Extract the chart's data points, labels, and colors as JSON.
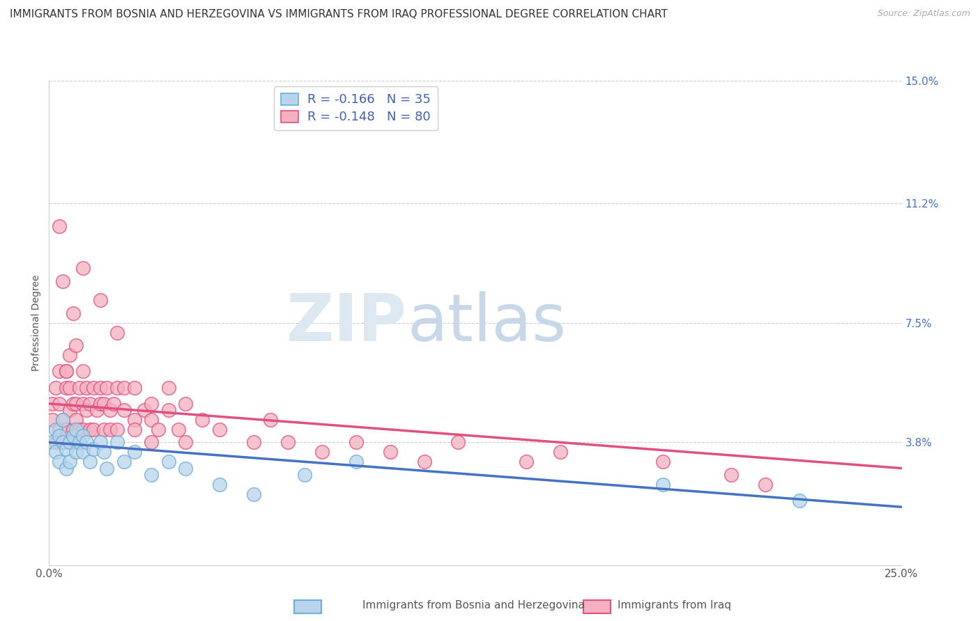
{
  "title": "IMMIGRANTS FROM BOSNIA AND HERZEGOVINA VS IMMIGRANTS FROM IRAQ PROFESSIONAL DEGREE CORRELATION CHART",
  "source": "Source: ZipAtlas.com",
  "ylabel": "Professional Degree",
  "xlabel": "",
  "xlim": [
    0.0,
    0.25
  ],
  "ylim": [
    0.0,
    0.15
  ],
  "yticks": [
    0.038,
    0.075,
    0.112,
    0.15
  ],
  "ytick_labels": [
    "3.8%",
    "7.5%",
    "11.2%",
    "15.0%"
  ],
  "xtick_labels": [
    "0.0%",
    "25.0%"
  ],
  "xticks": [
    0.0,
    0.25
  ],
  "legend_entries": [
    {
      "label": "R = -0.166   N = 35",
      "color": "#a8c4e0"
    },
    {
      "label": "R = -0.148   N = 80",
      "color": "#f4a0b0"
    }
  ],
  "series_bosnia": {
    "color": "#6baed6",
    "marker_color": "#b8d4ea",
    "trend_color": "#4472c4",
    "trend_start": 0.038,
    "trend_end": 0.018,
    "x": [
      0.001,
      0.002,
      0.002,
      0.003,
      0.003,
      0.004,
      0.004,
      0.005,
      0.005,
      0.006,
      0.006,
      0.007,
      0.008,
      0.008,
      0.009,
      0.01,
      0.01,
      0.011,
      0.012,
      0.013,
      0.015,
      0.016,
      0.017,
      0.02,
      0.022,
      0.025,
      0.03,
      0.035,
      0.04,
      0.05,
      0.06,
      0.075,
      0.09,
      0.18,
      0.22
    ],
    "y": [
      0.038,
      0.042,
      0.035,
      0.04,
      0.032,
      0.038,
      0.045,
      0.036,
      0.03,
      0.038,
      0.032,
      0.04,
      0.035,
      0.042,
      0.038,
      0.04,
      0.035,
      0.038,
      0.032,
      0.036,
      0.038,
      0.035,
      0.03,
      0.038,
      0.032,
      0.035,
      0.028,
      0.032,
      0.03,
      0.025,
      0.022,
      0.028,
      0.032,
      0.025,
      0.02
    ]
  },
  "series_iraq": {
    "color": "#e05080",
    "marker_color": "#f4b0c0",
    "trend_color": "#e05080",
    "trend_start": 0.05,
    "trend_end": 0.03,
    "x": [
      0.001,
      0.001,
      0.002,
      0.002,
      0.003,
      0.003,
      0.003,
      0.004,
      0.004,
      0.005,
      0.005,
      0.005,
      0.006,
      0.006,
      0.006,
      0.007,
      0.007,
      0.008,
      0.008,
      0.008,
      0.009,
      0.009,
      0.01,
      0.01,
      0.01,
      0.011,
      0.011,
      0.012,
      0.012,
      0.013,
      0.013,
      0.014,
      0.015,
      0.015,
      0.016,
      0.016,
      0.017,
      0.018,
      0.018,
      0.019,
      0.02,
      0.02,
      0.022,
      0.022,
      0.025,
      0.025,
      0.025,
      0.028,
      0.03,
      0.03,
      0.03,
      0.032,
      0.035,
      0.035,
      0.038,
      0.04,
      0.04,
      0.045,
      0.05,
      0.06,
      0.065,
      0.07,
      0.08,
      0.09,
      0.1,
      0.11,
      0.12,
      0.14,
      0.15,
      0.18,
      0.2,
      0.21,
      0.02,
      0.01,
      0.015,
      0.007,
      0.008,
      0.003,
      0.004,
      0.005
    ],
    "y": [
      0.045,
      0.05,
      0.038,
      0.055,
      0.042,
      0.05,
      0.06,
      0.045,
      0.038,
      0.055,
      0.042,
      0.06,
      0.048,
      0.055,
      0.065,
      0.042,
      0.05,
      0.045,
      0.05,
      0.038,
      0.055,
      0.042,
      0.05,
      0.042,
      0.06,
      0.048,
      0.055,
      0.042,
      0.05,
      0.055,
      0.042,
      0.048,
      0.05,
      0.055,
      0.042,
      0.05,
      0.055,
      0.048,
      0.042,
      0.05,
      0.055,
      0.042,
      0.048,
      0.055,
      0.045,
      0.055,
      0.042,
      0.048,
      0.045,
      0.05,
      0.038,
      0.042,
      0.048,
      0.055,
      0.042,
      0.05,
      0.038,
      0.045,
      0.042,
      0.038,
      0.045,
      0.038,
      0.035,
      0.038,
      0.035,
      0.032,
      0.038,
      0.032,
      0.035,
      0.032,
      0.028,
      0.025,
      0.072,
      0.092,
      0.082,
      0.078,
      0.068,
      0.105,
      0.088,
      0.06
    ]
  },
  "watermark_zip": "ZIP",
  "watermark_atlas": "atlas",
  "background_color": "#ffffff",
  "grid_color": "#cccccc",
  "title_fontsize": 11,
  "axis_label_fontsize": 10,
  "tick_fontsize": 11,
  "legend_fontsize": 12
}
